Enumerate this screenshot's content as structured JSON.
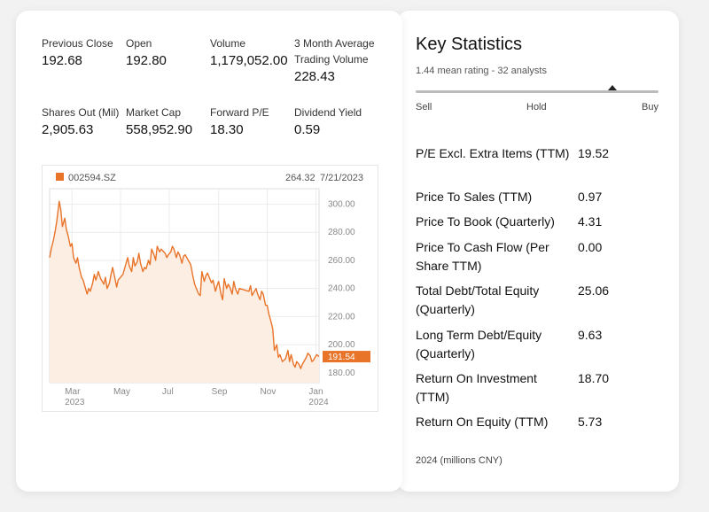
{
  "summary_stats": [
    {
      "label": "Previous Close",
      "value": "192.68"
    },
    {
      "label": "Open",
      "value": "192.80"
    },
    {
      "label": "Volume",
      "value": "1,179,052.00"
    },
    {
      "label": "3 Month Average Trading Volume",
      "value": "228.43"
    },
    {
      "label": "Shares Out (Mil)",
      "value": "2,905.63"
    },
    {
      "label": "Market Cap",
      "value": "558,952.90"
    },
    {
      "label": "Forward P/E",
      "value": "18.30"
    },
    {
      "label": "Dividend Yield",
      "value": "0.59"
    }
  ],
  "chart_header": {
    "ticker": "002594.SZ",
    "hover_value": "264.32",
    "hover_date": "7/21/2023",
    "last_price_tag": "191.54"
  },
  "colors": {
    "accent": "#e8742a",
    "area_fill": "#fdeee3",
    "grid": "#ececec"
  },
  "chart_data": {
    "type": "area",
    "series": [
      {
        "name": "002594.SZ",
        "x": [
          "2023-02-01",
          "2023-02-03",
          "2023-02-06",
          "2023-02-08",
          "2023-02-10",
          "2023-02-13",
          "2023-02-15",
          "2023-02-17",
          "2023-02-20",
          "2023-02-22",
          "2023-02-24",
          "2023-02-27",
          "2023-03-01",
          "2023-03-03",
          "2023-03-06",
          "2023-03-08",
          "2023-03-10",
          "2023-03-13",
          "2023-03-15",
          "2023-03-17",
          "2023-03-20",
          "2023-03-22",
          "2023-03-24",
          "2023-03-27",
          "2023-03-29",
          "2023-03-31",
          "2023-04-03",
          "2023-04-06",
          "2023-04-10",
          "2023-04-12",
          "2023-04-14",
          "2023-04-17",
          "2023-04-19",
          "2023-04-21",
          "2023-04-24",
          "2023-04-26",
          "2023-04-28",
          "2023-05-04",
          "2023-05-08",
          "2023-05-10",
          "2023-05-12",
          "2023-05-15",
          "2023-05-17",
          "2023-05-19",
          "2023-05-22",
          "2023-05-24",
          "2023-05-26",
          "2023-05-29",
          "2023-05-31",
          "2023-06-02",
          "2023-06-05",
          "2023-06-07",
          "2023-06-09",
          "2023-06-12",
          "2023-06-14",
          "2023-06-16",
          "2023-06-19",
          "2023-06-21",
          "2023-06-26",
          "2023-06-28",
          "2023-06-30",
          "2023-07-03",
          "2023-07-05",
          "2023-07-07",
          "2023-07-10",
          "2023-07-12",
          "2023-07-14",
          "2023-07-17",
          "2023-07-19",
          "2023-07-21",
          "2023-07-24",
          "2023-07-26",
          "2023-07-28",
          "2023-07-31",
          "2023-08-02",
          "2023-08-04",
          "2023-08-07",
          "2023-08-09",
          "2023-08-11",
          "2023-08-14",
          "2023-08-16",
          "2023-08-18",
          "2023-08-21",
          "2023-08-23",
          "2023-08-25",
          "2023-08-28",
          "2023-08-30",
          "2023-09-01",
          "2023-09-04",
          "2023-09-06",
          "2023-09-08",
          "2023-09-11",
          "2023-09-13",
          "2023-09-15",
          "2023-09-18",
          "2023-09-20",
          "2023-09-22",
          "2023-09-25",
          "2023-09-27",
          "2023-10-09",
          "2023-10-11",
          "2023-10-13",
          "2023-10-16",
          "2023-10-18",
          "2023-10-20",
          "2023-10-23",
          "2023-10-25",
          "2023-10-27",
          "2023-10-30",
          "2023-11-01",
          "2023-11-03",
          "2023-11-06",
          "2023-11-08",
          "2023-11-10",
          "2023-11-13",
          "2023-11-15",
          "2023-11-17",
          "2023-11-20",
          "2023-11-22",
          "2023-11-24",
          "2023-11-27",
          "2023-11-29",
          "2023-12-01",
          "2023-12-04",
          "2023-12-06",
          "2023-12-08",
          "2023-12-11",
          "2023-12-13",
          "2023-12-15",
          "2023-12-18",
          "2023-12-20",
          "2023-12-22",
          "2023-12-25",
          "2023-12-27",
          "2023-12-29",
          "2024-01-02",
          "2024-01-04",
          "2024-01-05"
        ],
        "values": [
          262,
          268,
          275,
          281,
          288,
          302,
          296,
          284,
          290,
          282,
          278,
          270,
          272,
          262,
          258,
          262,
          255,
          248,
          246,
          242,
          236,
          240,
          238,
          244,
          250,
          246,
          252,
          247,
          243,
          248,
          240,
          244,
          250,
          255,
          247,
          241,
          246,
          250,
          258,
          262,
          256,
          252,
          262,
          256,
          259,
          265,
          258,
          252,
          255,
          254,
          260,
          257,
          268,
          264,
          260,
          270,
          266,
          268,
          265,
          262,
          264,
          266,
          270,
          268,
          262,
          266,
          264,
          258,
          263,
          264,
          261,
          259,
          257,
          248,
          243,
          240,
          236,
          235,
          252,
          245,
          249,
          251,
          247,
          244,
          246,
          238,
          242,
          245,
          236,
          232,
          247,
          240,
          243,
          241,
          236,
          245,
          240,
          236,
          240,
          238,
          242,
          235,
          238,
          240,
          236,
          232,
          238,
          236,
          228,
          228,
          222,
          216,
          211,
          196,
          200,
          191,
          193,
          188,
          189,
          190,
          196,
          188,
          193,
          186,
          184,
          188,
          186,
          183,
          186,
          189,
          191,
          194,
          192,
          188,
          189,
          193,
          192,
          191.54
        ]
      }
    ],
    "xaxis_ticks": [
      {
        "label": "Mar",
        "sub": "2023",
        "at": "2023-03-01"
      },
      {
        "label": "May",
        "sub": "",
        "at": "2023-05-01"
      },
      {
        "label": "Jul",
        "sub": "",
        "at": "2023-07-01"
      },
      {
        "label": "Sep",
        "sub": "",
        "at": "2023-09-01"
      },
      {
        "label": "Nov",
        "sub": "",
        "at": "2023-11-01"
      },
      {
        "label": "Jan",
        "sub": "2024",
        "at": "2024-01-01"
      }
    ],
    "yaxis_ticks": [
      "300.00",
      "280.00",
      "260.00",
      "240.00",
      "220.00",
      "200.00",
      "180.00"
    ],
    "ylim": [
      173,
      311
    ],
    "grid": true,
    "title": "",
    "xlabel": "",
    "ylabel": ""
  },
  "key_statistics": {
    "title": "Key Statistics",
    "rating_text": "1.44 mean rating - 32 analysts",
    "rating_scale": [
      "Sell",
      "Hold",
      "Buy"
    ],
    "rating_value": 1.44,
    "rating_min": 1,
    "rating_max": 5,
    "rows": [
      {
        "label": "P/E Excl. Extra Items (TTM)",
        "value": "19.52"
      },
      {
        "label": "Price To Sales (TTM)",
        "value": "0.97"
      },
      {
        "label": "Price To Book (Quarterly)",
        "value": "4.31"
      },
      {
        "label": "Price To Cash Flow (Per Share TTM)",
        "value": "0.00"
      },
      {
        "label": "Total Debt/Total Equity (Quarterly)",
        "value": "25.06"
      },
      {
        "label": "Long Term Debt/Equity (Quarterly)",
        "value": "9.63"
      },
      {
        "label": "Return On Investment (TTM)",
        "value": "18.70"
      },
      {
        "label": "Return On Equity (TTM)",
        "value": "5.73"
      }
    ],
    "footnote": "2024 (millions CNY)"
  }
}
